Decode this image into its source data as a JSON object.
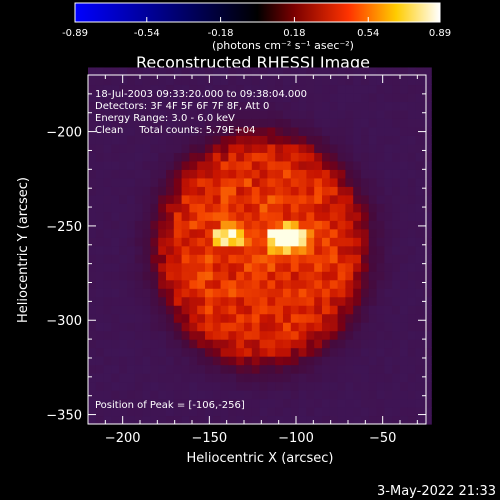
{
  "colorbar": {
    "ticks": [
      "-0.89",
      "-0.54",
      "-0.18",
      "0.18",
      "0.54",
      "0.89"
    ],
    "tick_values": [
      -0.89,
      -0.54,
      -0.18,
      0.18,
      0.54,
      0.89
    ],
    "range": [
      -0.89,
      0.89
    ],
    "units_label": "(photons cm⁻² s⁻¹ asec⁻²)",
    "stops": [
      "#0000ff",
      "#000000",
      "#7a0000",
      "#ff3300",
      "#ffcc00",
      "#ffffff"
    ]
  },
  "title": "Reconstructed RHESSI Image",
  "info": {
    "line1": "18-Jul-2003 09:33:20.000 to 09:38:04.000",
    "line2": "Detectors: 3F 4F 5F 6F 7F 8F, Att 0",
    "line3": "Energy Range: 3.0 - 6.0 keV",
    "line4": "Clean     Total counts: 5.79E+04"
  },
  "peak_label": "Position of Peak = [-106,-256]",
  "timestamp": "3-May-2022 21:33",
  "chart_data": {
    "type": "heatmap",
    "title": "Reconstructed RHESSI Image",
    "xlabel": "Heliocentric X (arcsec)",
    "ylabel": "Heliocentric Y (arcsec)",
    "xlim": [
      -220,
      -25
    ],
    "ylim": [
      -355,
      -170
    ],
    "x_ticks": [
      -200,
      -150,
      -100,
      -50
    ],
    "y_ticks": [
      -350,
      -300,
      -250,
      -200
    ],
    "x_tick_labels": [
      "−200",
      "−150",
      "−100",
      "−50"
    ],
    "y_tick_labels": [
      "−350",
      "−300",
      "−250",
      "−200"
    ],
    "source_center": [
      -120,
      -262
    ],
    "source_radius": 62,
    "peak": [
      -106,
      -256
    ],
    "secondary_peak": [
      -138,
      -255
    ],
    "colorbar_label": "(photons cm⁻² s⁻¹ asec⁻²)"
  }
}
